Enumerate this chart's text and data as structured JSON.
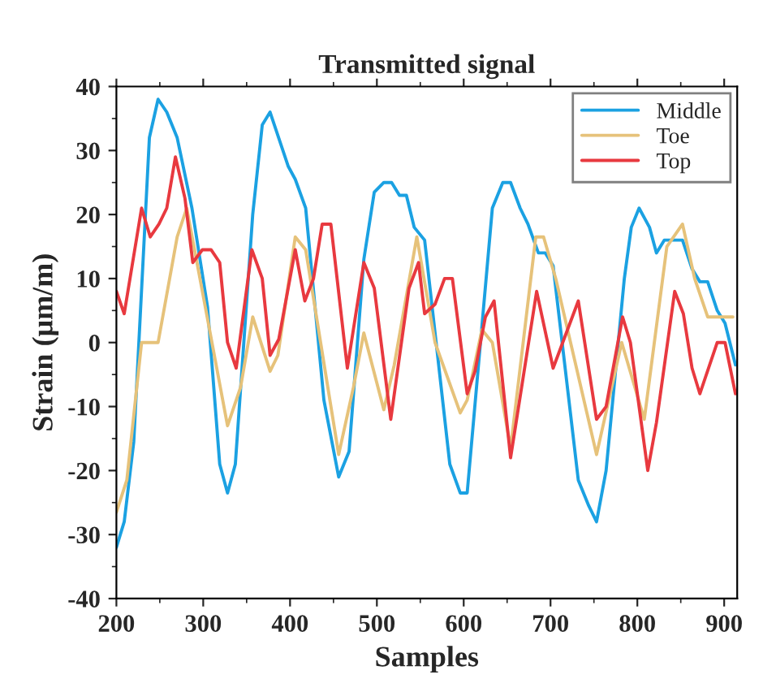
{
  "chart_data": {
    "type": "line",
    "title": "Transmitted signal",
    "xlabel": "Samples",
    "ylabel": "Strain (μm/m)",
    "xlim": [
      200,
      915
    ],
    "xticks": [
      200,
      300,
      400,
      500,
      600,
      700,
      800,
      900
    ],
    "ylim": [
      -40,
      40
    ],
    "yticks": [
      -40,
      -30,
      -20,
      -10,
      0,
      10,
      20,
      30,
      40
    ],
    "grid": false,
    "legend": "top right",
    "marker": "none",
    "line_style": "solid",
    "series": [
      {
        "name": "Middle",
        "color": "#1ba1e2",
        "x": [
          200,
          209,
          220,
          238,
          248,
          258,
          270,
          287,
          305,
          319,
          328,
          337,
          357,
          368,
          377,
          398,
          406,
          418,
          439,
          456,
          468,
          485,
          497,
          508,
          517,
          526,
          534,
          543,
          555,
          584,
          596,
          604,
          633,
          645,
          654,
          665,
          674,
          686,
          694,
          703,
          732,
          744,
          753,
          764,
          785,
          793,
          802,
          814,
          822,
          831,
          852,
          863,
          872,
          881,
          892,
          901,
          913
        ],
        "values": [
          -32,
          -28,
          -15.5,
          32,
          38,
          36,
          32,
          21,
          5.5,
          -19,
          -23.5,
          -19,
          20,
          34,
          36,
          27.5,
          25.5,
          21,
          -9,
          -21,
          -17,
          13,
          23.5,
          25,
          25,
          23,
          23,
          18,
          16,
          -19,
          -23.5,
          -23.5,
          21,
          25,
          25,
          21,
          18.5,
          14,
          14,
          12,
          -21.5,
          -25.5,
          -28,
          -20,
          10,
          18,
          21,
          18,
          14,
          16,
          16,
          11.5,
          9.5,
          9.5,
          5,
          3,
          -3.5
        ]
      },
      {
        "name": "Toe",
        "color": "#e6c27a",
        "x": [
          200,
          212,
          229,
          248,
          270,
          281,
          299,
          328,
          343,
          357,
          377,
          386,
          406,
          418,
          456,
          473,
          485,
          508,
          520,
          546,
          567,
          596,
          604,
          621,
          633,
          654,
          683,
          692,
          706,
          753,
          782,
          808,
          834,
          852,
          866,
          881,
          910
        ],
        "values": [
          -26.5,
          -21.5,
          0,
          0,
          16.5,
          21,
          8,
          -13,
          -7,
          4,
          -4.5,
          -2,
          16.5,
          14.5,
          -17.5,
          -7,
          1.5,
          -10.5,
          -3.5,
          16.5,
          0,
          -11,
          -9,
          2,
          0,
          -16.5,
          16.5,
          16.5,
          10,
          -17.5,
          0,
          -12,
          15,
          18.5,
          10,
          4,
          4
        ]
      },
      {
        "name": "Top",
        "color": "#e8393f",
        "x": [
          200,
          209,
          229,
          239,
          249,
          258,
          268,
          279,
          288,
          299,
          309,
          319,
          328,
          338,
          356,
          368,
          377,
          387,
          406,
          417,
          427,
          437,
          447,
          466,
          485,
          497,
          516,
          537,
          548,
          555,
          567,
          578,
          587,
          604,
          613,
          625,
          635,
          654,
          684,
          703,
          732,
          753,
          764,
          783,
          792,
          812,
          822,
          843,
          853,
          863,
          872,
          892,
          901,
          913
        ],
        "values": [
          8,
          4.5,
          21,
          16.5,
          18.5,
          21,
          29,
          22.5,
          12.5,
          14.5,
          14.5,
          12.5,
          0,
          -4,
          14.5,
          10,
          -2,
          0.5,
          14.5,
          6.5,
          10,
          18.5,
          18.5,
          -4,
          12.5,
          8.5,
          -12,
          8.5,
          12.5,
          4.5,
          6,
          10,
          10,
          -8,
          -4.5,
          4,
          6.5,
          -18,
          8,
          -4,
          6.5,
          -12,
          -10,
          4,
          0,
          -20,
          -12.5,
          8,
          4.5,
          -4,
          -8,
          0,
          0,
          -8
        ]
      }
    ]
  }
}
